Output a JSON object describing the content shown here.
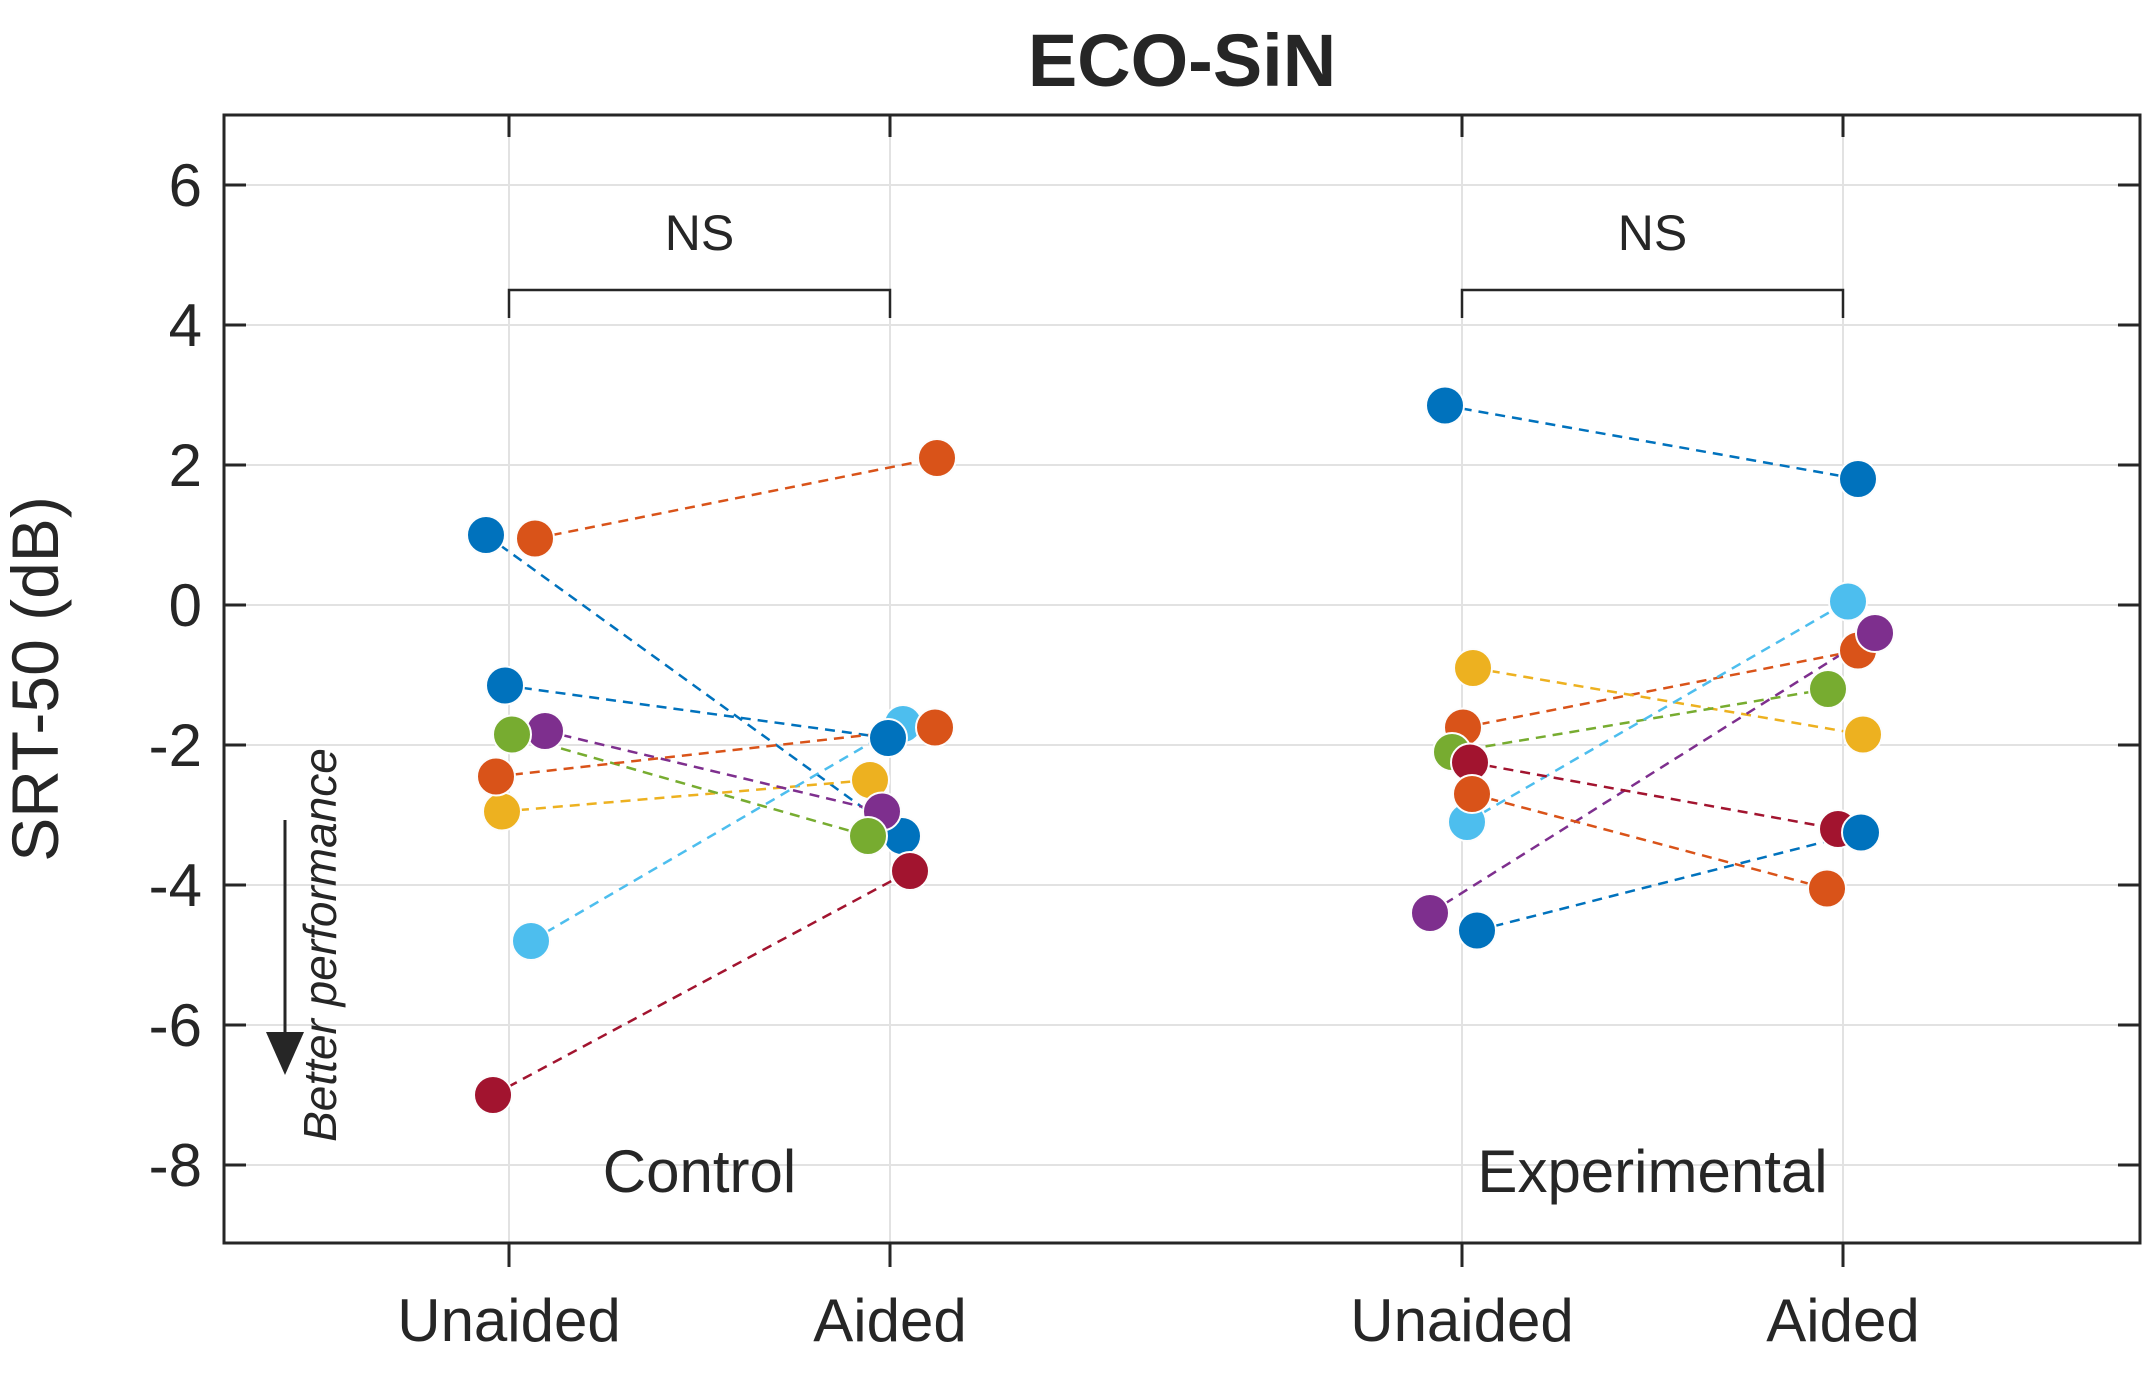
{
  "chart_data": {
    "type": "scatter",
    "title": "ECO-SiN",
    "ylabel": "SRT-50 (dB)",
    "ylim": [
      -9.1,
      7.0
    ],
    "yticks": [
      6,
      4,
      2,
      0,
      -2,
      -4,
      -6,
      -8
    ],
    "grid": true,
    "legend_position": "none",
    "conditions": [
      "Unaided",
      "Aided"
    ],
    "groups": [
      {
        "name": "Control",
        "ns_label": "NS",
        "subjects": [
          {
            "color_name": "blue",
            "color": "#0072BD",
            "unaided": 1.0,
            "aided": -3.3,
            "ju": -23,
            "ja": 12
          },
          {
            "color_name": "orange",
            "color": "#D95319",
            "unaided": 0.95,
            "aided": 2.1,
            "ju": 26,
            "ja": 47
          },
          {
            "color_name": "yellow",
            "color": "#EDB120",
            "unaided": -2.95,
            "aided": -2.5,
            "ju": -7,
            "ja": -20
          },
          {
            "color_name": "purple",
            "color": "#7E2F8E",
            "unaided": -1.8,
            "aided": -2.95,
            "ju": 36,
            "ja": -8
          },
          {
            "color_name": "green",
            "color": "#77AC30",
            "unaided": -1.85,
            "aided": -3.3,
            "ju": 3,
            "ja": -22
          },
          {
            "color_name": "cyan",
            "color": "#4DBEEE",
            "unaided": -4.8,
            "aided": -1.7,
            "ju": 22,
            "ja": 13
          },
          {
            "color_name": "dark-red",
            "color": "#A2142F",
            "unaided": -7.0,
            "aided": -3.8,
            "ju": -16,
            "ja": 20
          },
          {
            "color_name": "blue-2",
            "color": "#0072BD",
            "unaided": -1.15,
            "aided": -1.9,
            "ju": -4,
            "ja": -2
          },
          {
            "color_name": "orange-2",
            "color": "#D95319",
            "unaided": -2.45,
            "aided": -1.75,
            "ju": -13,
            "ja": 45
          }
        ]
      },
      {
        "name": "Experimental",
        "ns_label": "NS",
        "subjects": [
          {
            "color_name": "blue",
            "color": "#0072BD",
            "unaided": 2.85,
            "aided": 1.8,
            "ju": -17,
            "ja": 15
          },
          {
            "color_name": "orange",
            "color": "#D95319",
            "unaided": -1.75,
            "aided": -0.65,
            "ju": 1,
            "ja": 15
          },
          {
            "color_name": "yellow",
            "color": "#EDB120",
            "unaided": -0.9,
            "aided": -1.85,
            "ju": 11,
            "ja": 20
          },
          {
            "color_name": "purple",
            "color": "#7E2F8E",
            "unaided": -4.4,
            "aided": -0.4,
            "ju": -32,
            "ja": 32
          },
          {
            "color_name": "green",
            "color": "#77AC30",
            "unaided": -2.1,
            "aided": -1.2,
            "ju": -10,
            "ja": -15
          },
          {
            "color_name": "cyan",
            "color": "#4DBEEE",
            "unaided": -3.1,
            "aided": 0.05,
            "ju": 5,
            "ja": 5
          },
          {
            "color_name": "dark-red",
            "color": "#A2142F",
            "unaided": -2.25,
            "aided": -3.2,
            "ju": 8,
            "ja": -5
          },
          {
            "color_name": "blue-2",
            "color": "#0072BD",
            "unaided": -4.65,
            "aided": -3.25,
            "ju": 15,
            "ja": 18
          },
          {
            "color_name": "orange-2",
            "color": "#D95319",
            "unaided": -2.7,
            "aided": -4.05,
            "ju": 10,
            "ja": -16
          }
        ]
      }
    ],
    "annotations": {
      "ns_bracket_y_db": 4.5,
      "better_performance": "Better performance"
    }
  },
  "style": {
    "axis_color": "#262626",
    "grid_color": "#e2e2e2",
    "background": "#ffffff"
  }
}
